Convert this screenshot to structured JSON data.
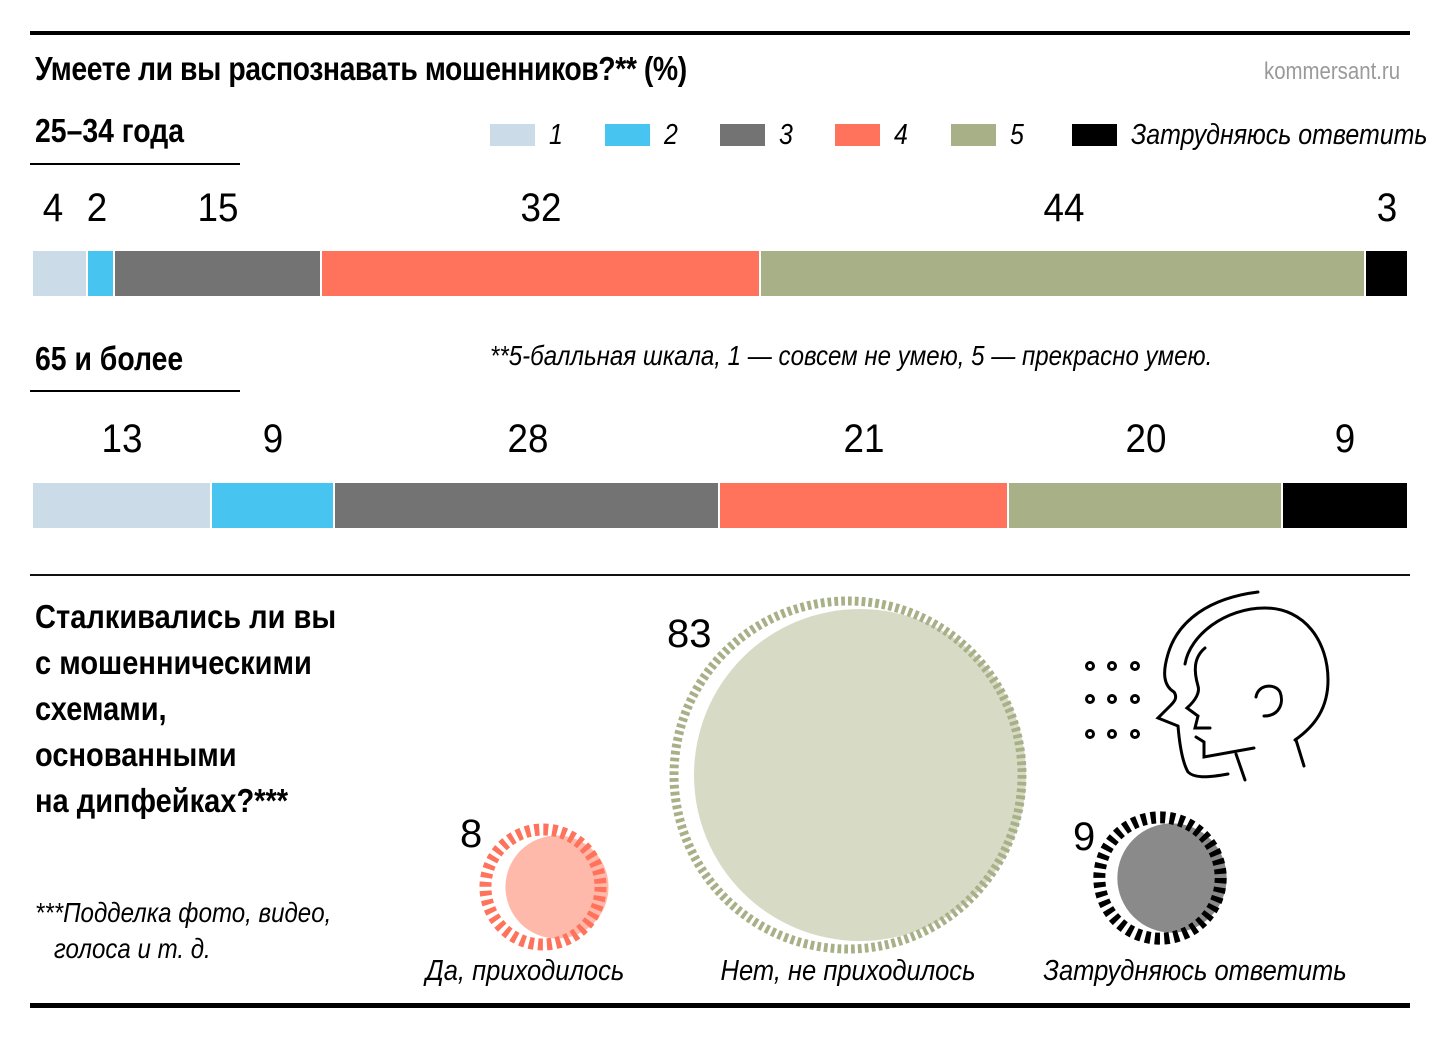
{
  "header": {
    "title": "Умеете ли вы распознавать мошенников?** (%)",
    "source": "kommersant.ru"
  },
  "legend": [
    {
      "label": "1",
      "color": "#cbdbe8"
    },
    {
      "label": "2",
      "color": "#47c4ef"
    },
    {
      "label": "3",
      "color": "#737373"
    },
    {
      "label": "4",
      "color": "#ff735c"
    },
    {
      "label": "5",
      "color": "#a8b088"
    },
    {
      "label": "Затрудняюсь ответить",
      "color": "#000000"
    }
  ],
  "scale_footnote": "**5-балльная шкала, 1 — совсем не умею, 5 — прекрасно умею.",
  "chart_data": [
    {
      "type": "bar",
      "orientation": "horizontal-stacked-100",
      "title": "Умеете ли вы распознавать мошенников?** (%)",
      "categories": [
        "1",
        "2",
        "3",
        "4",
        "5",
        "Затрудняюсь ответить"
      ],
      "series": [
        {
          "name": "25–34 года",
          "values": [
            4,
            2,
            15,
            32,
            44,
            3
          ]
        },
        {
          "name": "65 и более",
          "values": [
            13,
            9,
            28,
            21,
            20,
            9
          ]
        }
      ],
      "unit": "%",
      "legend_position": "top-right"
    },
    {
      "type": "bubble",
      "title": "Сталкивались ли вы с мошенническими схемами, основанными на дипфейках?***",
      "categories": [
        "Да, приходилось",
        "Нет, не приходилось",
        "Затрудняюсь ответить"
      ],
      "values": [
        8,
        83,
        9
      ],
      "colors": {
        "yes": {
          "ring": "#ff735c",
          "fill": "#ffb9ab"
        },
        "no": {
          "ring": "#a8b088",
          "fill": "#d7dbc6"
        },
        "unsure": {
          "ring": "#000000",
          "fill": "#8a8a8a"
        }
      },
      "unit": "%"
    }
  ],
  "groups": [
    {
      "label": "25–34 года"
    },
    {
      "label": "65 и более"
    }
  ],
  "question2": {
    "lines": [
      "Сталкивались ли вы",
      "с мошенническими",
      "схемами,",
      "основанными",
      "на дипфейках?***"
    ],
    "footnote_lines": [
      "***Подделка фото, видео,",
      "  голоса и т. д."
    ]
  }
}
